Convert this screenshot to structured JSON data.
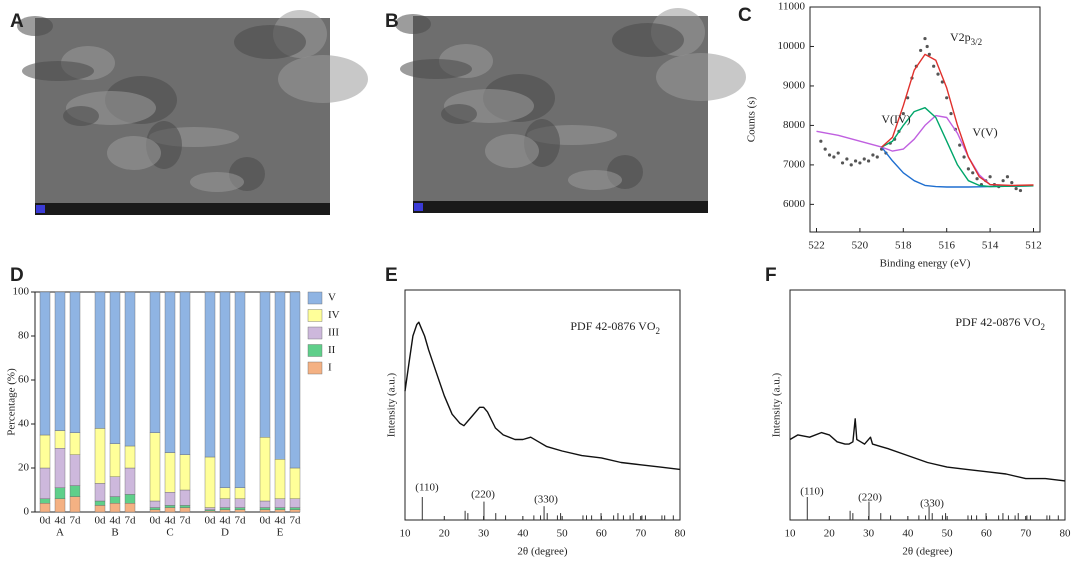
{
  "chart_data": [
    {
      "type": "image",
      "label": "A"
    },
    {
      "type": "image",
      "label": "B"
    },
    {
      "type": "line",
      "label": "C",
      "xlabel": "Binding energy (eV)",
      "ylabel": "Counts (s)",
      "xlim": [
        522.3,
        511.7
      ],
      "xticks": [
        522,
        520,
        518,
        516,
        514,
        512
      ],
      "ylim": [
        5300,
        11000
      ],
      "yticks": [
        6000,
        7000,
        8000,
        9000,
        10000,
        11000
      ],
      "x": [
        522,
        521,
        520,
        519,
        518.5,
        518,
        517.5,
        517,
        516.5,
        516,
        515.5,
        515,
        514.5,
        514,
        513,
        512
      ],
      "series": [
        {
          "color": "#1f6fd0",
          "values": [
            null,
            null,
            null,
            7450,
            7100,
            6800,
            6600,
            6480,
            6450,
            6440,
            6440,
            6440,
            6445,
            6450,
            6460,
            6470
          ]
        },
        {
          "color": "#c060e0",
          "values": [
            7850,
            7750,
            7600,
            7450,
            7350,
            7400,
            7650,
            8000,
            8250,
            8200,
            7800,
            7200,
            6750,
            6500,
            6470,
            6480
          ]
        },
        {
          "color": "#00a66a",
          "values": [
            null,
            null,
            null,
            7450,
            7600,
            8000,
            8350,
            8450,
            8200,
            7600,
            7000,
            6600,
            6480,
            6450,
            6460,
            6470
          ]
        },
        {
          "color": "#e0302c",
          "values": [
            null,
            null,
            null,
            7450,
            7700,
            8500,
            9400,
            9800,
            9650,
            8950,
            8000,
            7200,
            6700,
            6500,
            6480,
            6490
          ]
        }
      ],
      "scatter": {
        "color": "#555555",
        "x": [
          521.8,
          521.6,
          521.4,
          521.2,
          521,
          520.8,
          520.6,
          520.4,
          520.2,
          520,
          519.8,
          519.6,
          519.4,
          519.2,
          519,
          518.8,
          518.6,
          518.4,
          518.2,
          518,
          517.8,
          517.6,
          517.4,
          517.2,
          517,
          516.9,
          516.8,
          516.6,
          516.4,
          516.2,
          516,
          515.8,
          515.6,
          515.4,
          515.2,
          515,
          514.8,
          514.6,
          514.4,
          514.2,
          514,
          513.8,
          513.6,
          513.4,
          513.2,
          513,
          512.8,
          512.6
        ],
        "y": [
          7600,
          7400,
          7250,
          7200,
          7300,
          7050,
          7150,
          7000,
          7100,
          7050,
          7150,
          7100,
          7250,
          7200,
          7400,
          7300,
          7550,
          7650,
          7850,
          8300,
          8700,
          9200,
          9500,
          9900,
          10200,
          10000,
          9800,
          9500,
          9300,
          9100,
          8700,
          8300,
          7900,
          7500,
          7200,
          6900,
          6800,
          6650,
          6500,
          6600,
          6700,
          6500,
          6450,
          6600,
          6700,
          6550,
          6400,
          6350
        ]
      },
      "annotations": [
        {
          "text": "V2p",
          "sub": "3/2"
        },
        {
          "text": "V(IV)"
        },
        {
          "text": "V(V)"
        }
      ]
    },
    {
      "type": "bar",
      "stacked": true,
      "label": "D",
      "ylabel": "Percentage (%)",
      "ylim": [
        0,
        100
      ],
      "yticks": [
        0,
        20,
        40,
        60,
        80,
        100
      ],
      "categories": [
        "0d",
        "4d",
        "7d",
        "0d",
        "4d",
        "7d",
        "0d",
        "4d",
        "7d",
        "0d",
        "4d",
        "7d",
        "0d",
        "4d",
        "7d"
      ],
      "groups": [
        "A",
        "B",
        "C",
        "D",
        "E"
      ],
      "series": [
        {
          "name": "I",
          "color": "#f4b183",
          "values": [
            4,
            6,
            7,
            3,
            4,
            4,
            1,
            2,
            2,
            0.5,
            1,
            1,
            1,
            1,
            1
          ]
        },
        {
          "name": "II",
          "color": "#5fcf8a",
          "values": [
            2,
            5,
            5,
            2,
            3,
            4,
            1,
            1,
            1,
            0.5,
            1,
            1,
            1,
            1,
            1
          ]
        },
        {
          "name": "III",
          "color": "#cdb8dc",
          "values": [
            14,
            18,
            14,
            8,
            9,
            12,
            3,
            6,
            7,
            1,
            4,
            4,
            3,
            4,
            4
          ]
        },
        {
          "name": "IV",
          "color": "#ffff99",
          "values": [
            15,
            8,
            10,
            25,
            15,
            10,
            31,
            18,
            16,
            23,
            5,
            5,
            29,
            18,
            14
          ]
        },
        {
          "name": "V",
          "color": "#8fb4e3",
          "values": [
            65,
            63,
            64,
            62,
            69,
            70,
            64,
            73,
            74,
            75,
            89,
            89,
            66,
            76,
            80
          ]
        }
      ]
    },
    {
      "type": "line",
      "label": "E",
      "xlabel": "2θ (degree)",
      "ylabel": "Intensity (a.u.)",
      "xlim": [
        10,
        80
      ],
      "xticks": [
        10,
        20,
        30,
        40,
        50,
        60,
        70,
        80
      ],
      "ylim": [
        0,
        100
      ],
      "x": [
        10,
        11,
        12,
        13,
        13.5,
        14,
        15,
        16,
        18,
        20,
        22,
        24,
        25,
        27,
        29,
        30,
        31,
        33,
        35,
        38,
        40,
        42,
        44,
        46,
        50,
        55,
        60,
        65,
        70,
        75,
        80
      ],
      "series": [
        {
          "color": "#111111",
          "values": [
            56,
            68,
            80,
            85,
            86,
            84,
            80,
            74,
            64,
            54,
            46,
            42,
            41,
            45,
            49,
            49,
            47,
            40,
            37,
            35,
            35,
            36,
            34,
            32,
            30,
            28,
            27,
            25,
            24,
            23,
            22
          ]
        }
      ],
      "sticks": {
        "x": [
          14.4,
          25.3,
          26,
          30.1,
          33.1,
          35.6,
          42.8,
          44.5,
          45.4,
          46.2,
          48.8,
          49.6,
          55.3,
          56.2,
          57.5,
          59.9,
          63.1,
          64.2,
          65.6,
          67.3,
          68.1,
          70.3,
          71.2,
          75.4,
          76.1,
          78.3
        ],
        "heights": [
          10,
          4,
          3,
          8,
          3,
          2,
          2,
          2,
          6,
          3,
          2,
          3,
          2,
          2,
          2,
          3,
          2,
          3,
          2,
          2,
          3,
          2,
          2,
          2,
          2,
          2
        ]
      },
      "peak_labels": [
        "(110)",
        "(220)",
        "(330)"
      ],
      "annotations": [
        {
          "text": "PDF 42-0876 VO",
          "sub": "2"
        }
      ]
    },
    {
      "type": "line",
      "label": "F",
      "xlabel": "2θ (degree)",
      "ylabel": "Intensity (a.u.)",
      "xlim": [
        10,
        80
      ],
      "xticks": [
        10,
        20,
        30,
        40,
        50,
        60,
        70,
        80
      ],
      "ylim": [
        0,
        100
      ],
      "x": [
        10,
        12,
        15,
        18,
        20,
        22,
        24,
        25,
        26,
        26.6,
        27,
        28,
        29,
        30.5,
        31,
        33,
        35,
        40,
        45,
        50,
        55,
        60,
        65,
        70,
        75,
        80
      ],
      "series": [
        {
          "color": "#111111",
          "values": [
            35,
            37,
            36,
            38,
            37,
            34,
            33,
            33,
            34,
            44,
            35,
            34,
            33,
            36,
            33,
            32,
            31,
            28,
            25,
            23,
            22,
            21,
            20,
            18,
            18,
            17
          ]
        }
      ],
      "sticks": {
        "x": [
          14.4,
          25.3,
          26,
          30.1,
          33.1,
          35.6,
          42.8,
          44.5,
          45.4,
          46.2,
          48.8,
          49.6,
          55.3,
          56.2,
          57.5,
          59.9,
          63.1,
          64.2,
          65.6,
          67.3,
          68.1,
          70.3,
          71.2,
          75.4,
          76.1,
          78.3
        ],
        "heights": [
          10,
          4,
          3,
          8,
          3,
          2,
          2,
          2,
          6,
          3,
          2,
          3,
          2,
          2,
          2,
          3,
          2,
          3,
          2,
          2,
          3,
          2,
          2,
          2,
          2,
          2
        ]
      },
      "peak_labels": [
        "(110)",
        "(220)",
        "(330)"
      ],
      "annotations": [
        {
          "text": "PDF 42-0876 VO",
          "sub": "2"
        }
      ]
    }
  ]
}
